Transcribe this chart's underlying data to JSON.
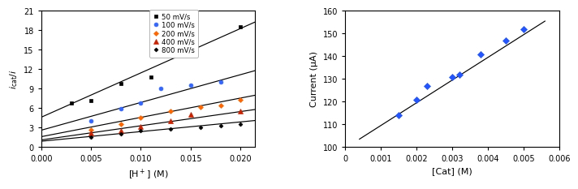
{
  "left": {
    "xlabel": "[H$^+$] (M)",
    "ylabel": "$i_{\\mathrm{cat}}/i$",
    "xlim": [
      0.0,
      0.0215
    ],
    "ylim": [
      0,
      21
    ],
    "yticks": [
      0,
      3,
      6,
      9,
      12,
      15,
      18,
      21
    ],
    "xticks": [
      0.0,
      0.005,
      0.01,
      0.015,
      0.02
    ],
    "series": [
      {
        "label": "50 mV/s",
        "color": "black",
        "marker": "s",
        "markersize": 3.5,
        "x": [
          0.003,
          0.005,
          0.008,
          0.011,
          0.012,
          0.015,
          0.02
        ],
        "y": [
          6.8,
          7.2,
          9.8,
          10.8,
          14.6,
          17.0,
          18.5
        ],
        "fit_x": [
          0.0,
          0.0215
        ],
        "fit_y": [
          4.6,
          19.3
        ]
      },
      {
        "label": "100 mV/s",
        "color": "#3366ff",
        "marker": "o",
        "markersize": 3.5,
        "x": [
          0.005,
          0.008,
          0.01,
          0.012,
          0.015,
          0.018
        ],
        "y": [
          4.0,
          5.9,
          6.8,
          9.0,
          9.5,
          10.0
        ],
        "fit_x": [
          0.0,
          0.0215
        ],
        "fit_y": [
          2.6,
          11.8
        ]
      },
      {
        "label": "200 mV/s",
        "color": "#ff6600",
        "marker": "D",
        "markersize": 3.0,
        "x": [
          0.005,
          0.008,
          0.01,
          0.013,
          0.016,
          0.018,
          0.02
        ],
        "y": [
          2.7,
          3.5,
          4.5,
          5.5,
          6.2,
          6.4,
          7.3
        ],
        "fit_x": [
          0.0,
          0.0215
        ],
        "fit_y": [
          1.6,
          8.0
        ]
      },
      {
        "label": "400 mV/s",
        "color": "#cc2200",
        "marker": "^",
        "markersize": 4.0,
        "x": [
          0.005,
          0.008,
          0.01,
          0.013,
          0.015,
          0.02
        ],
        "y": [
          2.2,
          2.5,
          3.2,
          4.0,
          5.0,
          5.5
        ],
        "fit_x": [
          0.0,
          0.0215
        ],
        "fit_y": [
          1.1,
          5.8
        ]
      },
      {
        "label": "800 mV/s",
        "color": "black",
        "marker": "D",
        "markersize": 2.5,
        "x": [
          0.005,
          0.008,
          0.01,
          0.013,
          0.016,
          0.018,
          0.02
        ],
        "y": [
          1.5,
          2.0,
          2.5,
          2.8,
          3.0,
          3.3,
          3.6
        ],
        "fit_x": [
          0.0,
          0.0215
        ],
        "fit_y": [
          0.9,
          4.1
        ]
      }
    ]
  },
  "right": {
    "xlabel": "[Cat] (M)",
    "ylabel": "Current (μA)",
    "xlim": [
      0.0,
      0.006
    ],
    "ylim": [
      100,
      160
    ],
    "yticks": [
      100,
      110,
      120,
      130,
      140,
      150,
      160
    ],
    "xticks": [
      0.0,
      0.001,
      0.002,
      0.003,
      0.004,
      0.005,
      0.006
    ],
    "xtick_labels": [
      "0",
      "0.001",
      "0.002",
      "0.003",
      "0.004",
      "0.005",
      "0.006"
    ],
    "points_x": [
      0.0015,
      0.002,
      0.0023,
      0.003,
      0.0032,
      0.0038,
      0.0045,
      0.005
    ],
    "points_y": [
      114,
      121,
      127,
      131,
      132,
      141,
      147,
      152
    ],
    "fit_x": [
      0.0004,
      0.0056
    ],
    "fit_y": [
      103.5,
      155.5
    ],
    "point_color": "#2255ff",
    "point_marker": "D",
    "markersize": 4.0
  }
}
